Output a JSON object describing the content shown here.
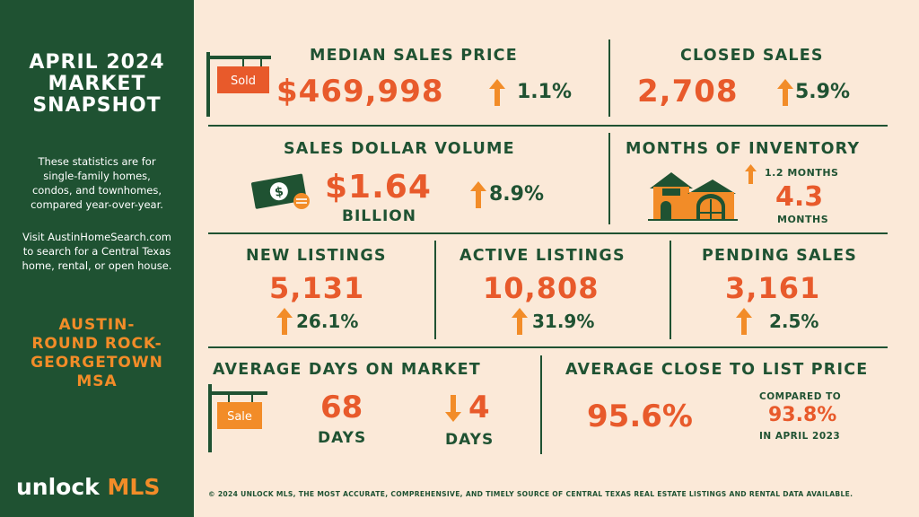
{
  "sidebar": {
    "title_lines": [
      "APRIL 2024",
      "MARKET",
      "SNAPSHOT"
    ],
    "description_lines": [
      "These statistics are for",
      "single-family homes,",
      "condos, and townhomes,",
      "compared year-over-year."
    ],
    "visit_lines": [
      "Visit AustinHomeSearch.com",
      "to search for a Central Texas",
      "home, rental, or open house."
    ],
    "msa_lines": [
      "AUSTIN-",
      "ROUND ROCK-",
      "GEORGETOWN",
      "MSA"
    ],
    "logo_word": "unlock",
    "logo_accent": "MLS"
  },
  "median_price": {
    "label": "MEDIAN SALES PRICE",
    "value": "$469,998",
    "change": "1.1%",
    "direction": "up",
    "sign_text": "Sold"
  },
  "closed_sales": {
    "label": "CLOSED SALES",
    "value": "2,708",
    "change": "5.9%",
    "direction": "up"
  },
  "dollar_volume": {
    "label": "SALES DOLLAR VOLUME",
    "value": "$1.64",
    "unit": "BILLION",
    "change": "8.9%",
    "direction": "up"
  },
  "inventory": {
    "label": "MONTHS OF INVENTORY",
    "change": "1.2 MONTHS",
    "value": "4.3",
    "unit": "MONTHS",
    "direction": "up"
  },
  "new_listings": {
    "label": "NEW LISTINGS",
    "value": "5,131",
    "change": "26.1%",
    "direction": "up"
  },
  "active_listings": {
    "label": "ACTIVE LISTINGS",
    "value": "10,808",
    "change": "31.9%",
    "direction": "up"
  },
  "pending_sales": {
    "label": "PENDING SALES",
    "value": "3,161",
    "change": "2.5%",
    "direction": "up"
  },
  "days_on_market": {
    "label": "AVERAGE DAYS ON MARKET",
    "value": "68",
    "unit": "DAYS",
    "change": "4",
    "change_unit": "DAYS",
    "direction": "down",
    "sign_text": "Sale"
  },
  "close_to_list": {
    "label": "AVERAGE CLOSE TO LIST PRICE",
    "value": "95.6%",
    "compare_label": "COMPARED TO",
    "compare_value": "93.8%",
    "compare_period": "IN APRIL 2023"
  },
  "footer": "© 2024 UNLOCK MLS, THE MOST ACCURATE, COMPREHENSIVE, AND TIMELY SOURCE  OF CENTRAL TEXAS REAL ESTATE LISTINGS AND RENTAL DATA AVAILABLE.",
  "colors": {
    "green": "#1f5232",
    "orange": "#e85a2b",
    "accent_orange": "#f28c28",
    "background": "#fbe9d8"
  }
}
